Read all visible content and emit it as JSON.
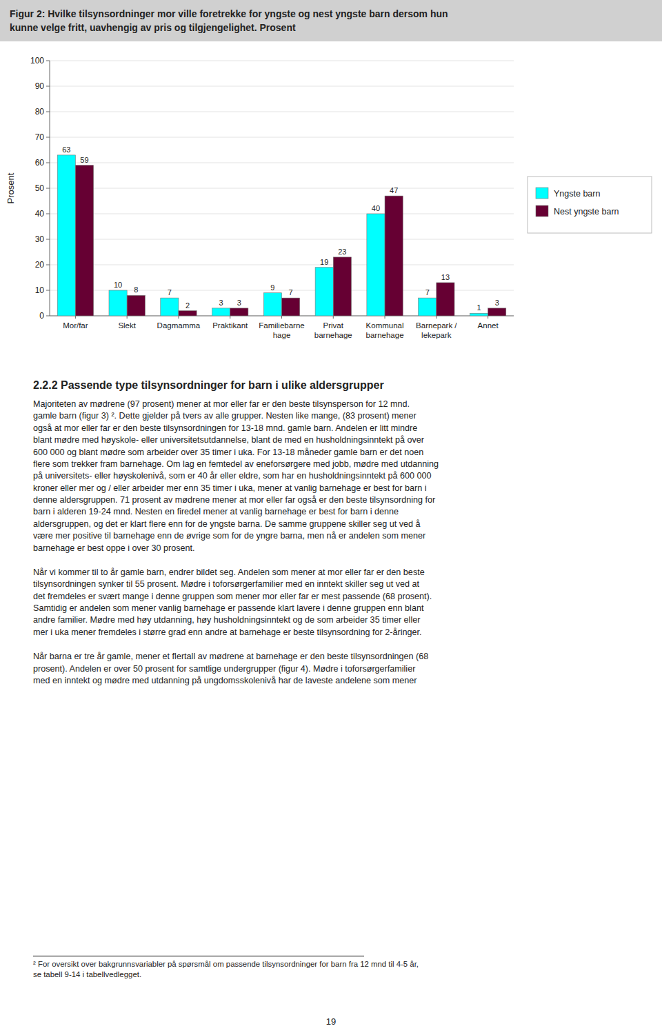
{
  "chart_data": {
    "type": "bar",
    "title": "Figur 2: Hvilke tilsynsordninger mor ville foretrekke for yngste og nest yngste barn dersom hun\nkunne velge fritt, uavhengig av pris og tilgjengelighet. Prosent",
    "categories": [
      "Mor/far",
      "Slekt",
      "Dagmamma",
      "Praktikant",
      "Familiebarne\nhage",
      "Privat\nbarnehage",
      "Kommunal\nbarnehage",
      "Barnepark /\nlekepark",
      "Annet"
    ],
    "series": [
      {
        "name": "Yngste barn",
        "color": "#00FFFF",
        "values": [
          63,
          10,
          7,
          3,
          9,
          19,
          40,
          7,
          1
        ]
      },
      {
        "name": "Nest yngste barn",
        "color": "#660033",
        "values": [
          59,
          8,
          2,
          3,
          7,
          23,
          47,
          13,
          3
        ]
      }
    ],
    "ylabel": "Prosent",
    "ylim": [
      0,
      100
    ],
    "yticks": [
      0,
      10,
      20,
      30,
      40,
      50,
      60,
      70,
      80,
      90,
      100
    ],
    "grid": true,
    "legend": "right",
    "data_labels": true
  },
  "section_title": "2.2.2  Passende type tilsynsordninger for barn i ulike aldersgrupper",
  "paragraphs": [
    "Majoriteten av mødrene (97 prosent) mener at mor eller far er den beste tilsynsperson for 12 mnd.\ngamle barn (figur 3) ². Dette gjelder på tvers av alle grupper. Nesten like mange, (83 prosent) mener\nogså at mor eller far er den beste tilsynsordningen for 13-18 mnd. gamle barn. Andelen er litt mindre\nblant mødre med høyskole- eller universitetsutdannelse, blant de med en husholdningsinntekt på over\n600 000 og blant mødre som arbeider over 35 timer i uka. For 13-18 måneder gamle barn er det noen\nflere som trekker fram barnehage. Om lag en femtedel av eneforsørgere med jobb, mødre med utdanning\npå universitets- eller høyskolenivå, som er 40 år eller eldre, som har en husholdningsinntekt på 600 000\nkroner eller mer og / eller arbeider mer enn 35 timer i uka, mener at vanlig barnehage er best for barn i\ndenne aldersgruppen. 71 prosent av mødrene mener at mor eller far også er den beste tilsynsordning for\nbarn i alderen 19-24 mnd. Nesten en firedel mener at vanlig barnehage er best for barn i denne\naldersgruppen, og det er klart flere enn for de yngste barna. De samme gruppene skiller seg ut ved å\nvære mer positive til barnehage enn de øvrige som for de yngre barna, men nå er andelen som mener\nbarnehage er best oppe i over 30 prosent.",
    "Når vi kommer til to år gamle barn, endrer bildet seg. Andelen som mener at mor eller far er den beste\ntilsynsordningen synker til 55 prosent. Mødre i toforsørgerfamilier med en inntekt skiller seg ut ved at\ndet fremdeles er svært mange i denne gruppen som mener mor eller far er mest passende (68 prosent).\nSamtidig er andelen som mener vanlig barnehage er passende klart lavere i denne gruppen enn blant\nandre familier. Mødre med høy utdanning, høy husholdningsinntekt og de som arbeider 35 timer eller\nmer i uka mener fremdeles i større grad enn andre at barnehage er beste tilsynsordning for 2-åringer.",
    "Når barna er tre år gamle, mener et flertall av mødrene at barnehage er den beste tilsynsordningen (68\nprosent). Andelen er over 50 prosent for samtlige undergrupper (figur 4). Mødre i toforsørgerfamilier\nmed en inntekt og mødre med utdanning på ungdomsskolenivå har de laveste andelene som mener"
  ],
  "footnote": "² For oversikt over bakgrunnsvariabler på spørsmål om passende tilsynsordninger for barn fra 12 mnd til 4-5 år,\nse tabell 9-14 i tabellvedlegget.",
  "page_number": "19"
}
